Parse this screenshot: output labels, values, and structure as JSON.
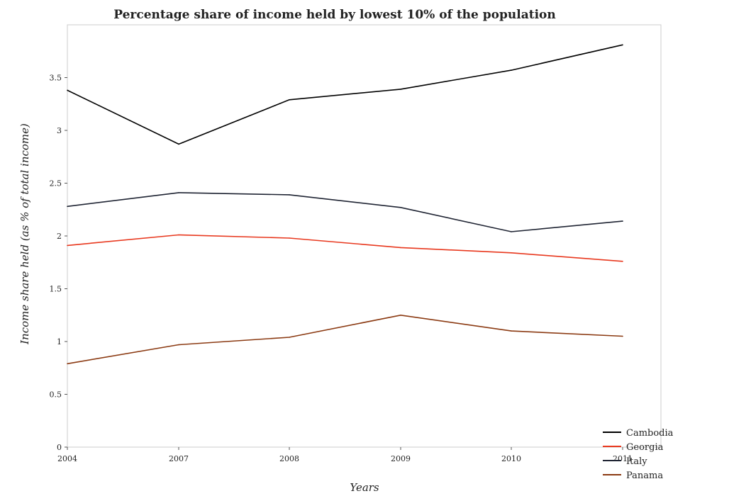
{
  "chart_data": {
    "type": "line",
    "title": "Percentage share of income held by lowest 10% of the population",
    "xlabel": "Years",
    "ylabel": "Income share held (as % of total income)",
    "categories": [
      "2004",
      "2007",
      "2008",
      "2009",
      "2010",
      "2011"
    ],
    "ylim": [
      0,
      4
    ],
    "yticks": [
      0,
      0.5,
      1,
      1.5,
      2,
      2.5,
      3,
      3.5
    ],
    "ytick_labels": [
      "0",
      "0.5",
      "1",
      "1.5",
      "2",
      "2.5",
      "3",
      "3.5"
    ],
    "grid": false,
    "legend_position": "bottom-right",
    "series": [
      {
        "name": "Cambodia",
        "color": "#000000",
        "values": [
          3.38,
          2.87,
          3.29,
          3.39,
          3.57,
          3.81
        ]
      },
      {
        "name": "Georgia",
        "color": "#e8381e",
        "values": [
          1.91,
          2.01,
          1.98,
          1.89,
          1.84,
          1.76
        ]
      },
      {
        "name": "Italy",
        "color": "#1f2433",
        "values": [
          2.28,
          2.41,
          2.39,
          2.27,
          2.04,
          2.14
        ]
      },
      {
        "name": "Panama",
        "color": "#8b3a12",
        "values": [
          0.79,
          0.97,
          1.04,
          1.25,
          1.1,
          1.05
        ]
      }
    ]
  }
}
